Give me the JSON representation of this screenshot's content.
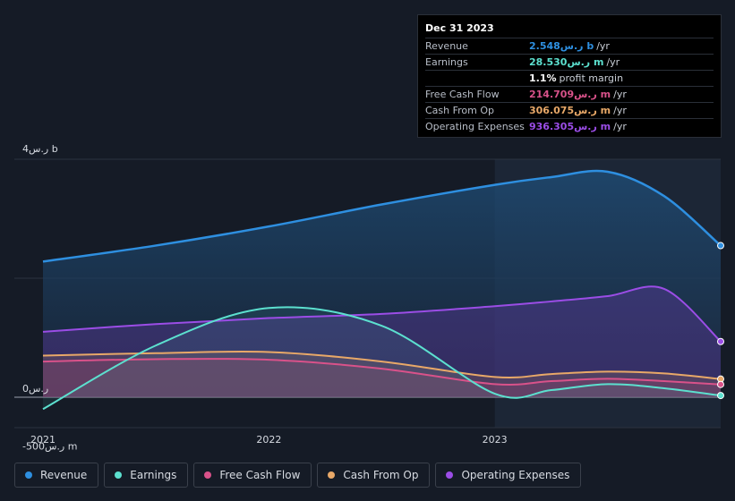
{
  "tooltip": {
    "date": "Dec 31 2023",
    "rows": [
      {
        "label": "Revenue",
        "value": "2.548ر.س b",
        "unit": "/yr",
        "color": "#2e8fe0"
      },
      {
        "label": "Earnings",
        "value": "28.530ر.س m",
        "unit": "/yr",
        "color": "#5ce0cf"
      },
      {
        "label": "",
        "value": "1.1%",
        "unit": "profit margin",
        "color": "#ffffff"
      },
      {
        "label": "Free Cash Flow",
        "value": "214.709ر.س m",
        "unit": "/yr",
        "color": "#d9528a"
      },
      {
        "label": "Cash From Op",
        "value": "306.075ر.س m",
        "unit": "/yr",
        "color": "#e8a868"
      },
      {
        "label": "Operating Expenses",
        "value": "936.305ر.س m",
        "unit": "/yr",
        "color": "#9b4de6"
      }
    ]
  },
  "chart_data": {
    "type": "area",
    "title": "",
    "xlabel": "",
    "ylabel": "",
    "y_tick_labels": [
      "4ر.س b",
      "0ر.س",
      "-500ر.س m"
    ],
    "y_ticks": [
      4000,
      0,
      -500
    ],
    "ylim": [
      -500,
      4000
    ],
    "x_tick_labels": [
      "2021",
      "2022",
      "2023"
    ],
    "x_ticks": [
      2021.0,
      2022.0,
      2023.0
    ],
    "xlim": [
      2020.87,
      2024.0
    ],
    "highlight_start": 2023.0,
    "x": [
      2021.0,
      2021.5,
      2022.0,
      2022.5,
      2023.0,
      2023.25,
      2023.5,
      2023.75,
      2024.0
    ],
    "series": [
      {
        "name": "Revenue",
        "color": "#2e8fe0",
        "values": [
          2280,
          2550,
          2870,
          3240,
          3570,
          3700,
          3790,
          3380,
          2548
        ]
      },
      {
        "name": "Earnings",
        "color": "#5ce0cf",
        "values": [
          -200,
          870,
          1500,
          1200,
          60,
          120,
          220,
          150,
          28.5
        ]
      },
      {
        "name": "Free Cash Flow",
        "color": "#d9528a",
        "values": [
          600,
          640,
          630,
          480,
          220,
          270,
          310,
          270,
          214.7
        ]
      },
      {
        "name": "Cash From Op",
        "color": "#e8a868",
        "values": [
          700,
          740,
          760,
          600,
          340,
          390,
          430,
          400,
          306.1
        ]
      },
      {
        "name": "Operating Expenses",
        "color": "#9b4de6",
        "values": [
          1100,
          1230,
          1330,
          1400,
          1530,
          1610,
          1700,
          1820,
          936.3
        ]
      }
    ]
  },
  "legend": [
    {
      "label": "Revenue",
      "color": "#2e8fe0"
    },
    {
      "label": "Earnings",
      "color": "#5ce0cf"
    },
    {
      "label": "Free Cash Flow",
      "color": "#d9528a"
    },
    {
      "label": "Cash From Op",
      "color": "#e8a868"
    },
    {
      "label": "Operating Expenses",
      "color": "#9b4de6"
    }
  ]
}
